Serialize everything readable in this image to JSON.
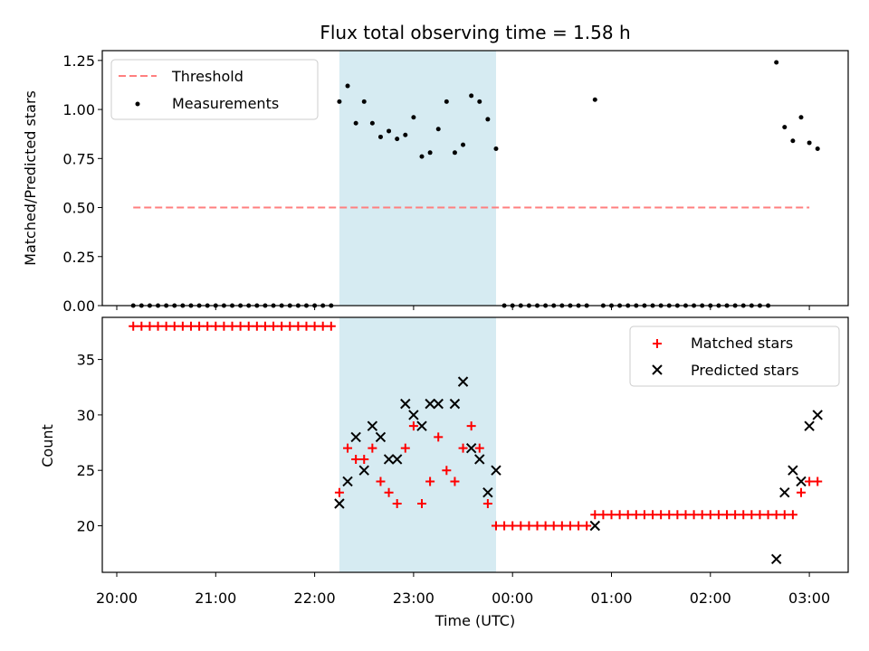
{
  "chart_data": {
    "type": "scatter",
    "title": "Flux total observing time = 1.58 h",
    "xlabel": "Time (UTC)",
    "x_ticks": [
      "20:00",
      "21:00",
      "22:00",
      "23:00",
      "00:00",
      "01:00",
      "02:00",
      "03:00"
    ],
    "shaded_region": {
      "start": "22:15",
      "end": "23:50",
      "color": "#add8e6"
    },
    "panels": [
      {
        "ylabel": "Matched/Predicted stars",
        "ylim": [
          0,
          1.3
        ],
        "y_ticks": [
          "0.00",
          "0.25",
          "0.50",
          "0.75",
          "1.00",
          "1.25"
        ],
        "legend": {
          "position": "top-left",
          "entries": [
            "Threshold",
            "Measurements"
          ]
        },
        "threshold": {
          "name": "Threshold",
          "value": 0.5,
          "x_start": "20:10",
          "x_end": "03:00",
          "color": "#ff7f7f"
        },
        "measurements": {
          "name": "Measurements",
          "color": "#000000",
          "points": [
            [
              "20:10",
              0
            ],
            [
              "20:15",
              0
            ],
            [
              "20:20",
              0
            ],
            [
              "20:25",
              0
            ],
            [
              "20:30",
              0
            ],
            [
              "20:35",
              0
            ],
            [
              "20:40",
              0
            ],
            [
              "20:45",
              0
            ],
            [
              "20:50",
              0
            ],
            [
              "20:55",
              0
            ],
            [
              "21:00",
              0
            ],
            [
              "21:05",
              0
            ],
            [
              "21:10",
              0
            ],
            [
              "21:15",
              0
            ],
            [
              "21:20",
              0
            ],
            [
              "21:25",
              0
            ],
            [
              "21:30",
              0
            ],
            [
              "21:35",
              0
            ],
            [
              "21:40",
              0
            ],
            [
              "21:45",
              0
            ],
            [
              "21:50",
              0
            ],
            [
              "21:55",
              0
            ],
            [
              "22:00",
              0
            ],
            [
              "22:05",
              0
            ],
            [
              "22:10",
              0
            ],
            [
              "22:15",
              1.04
            ],
            [
              "22:20",
              1.12
            ],
            [
              "22:25",
              0.93
            ],
            [
              "22:30",
              1.04
            ],
            [
              "22:35",
              0.93
            ],
            [
              "22:40",
              0.86
            ],
            [
              "22:45",
              0.89
            ],
            [
              "22:50",
              0.85
            ],
            [
              "22:55",
              0.87
            ],
            [
              "23:00",
              0.96
            ],
            [
              "23:05",
              0.76
            ],
            [
              "23:10",
              0.78
            ],
            [
              "23:15",
              0.9
            ],
            [
              "23:20",
              1.04
            ],
            [
              "23:25",
              0.78
            ],
            [
              "23:30",
              0.82
            ],
            [
              "23:35",
              1.07
            ],
            [
              "23:40",
              1.04
            ],
            [
              "23:45",
              0.95
            ],
            [
              "23:50",
              0.8
            ],
            [
              "23:55",
              0
            ],
            [
              "00:00",
              0
            ],
            [
              "00:05",
              0
            ],
            [
              "00:10",
              0
            ],
            [
              "00:15",
              0
            ],
            [
              "00:20",
              0
            ],
            [
              "00:25",
              0
            ],
            [
              "00:30",
              0
            ],
            [
              "00:35",
              0
            ],
            [
              "00:40",
              0
            ],
            [
              "00:45",
              0
            ],
            [
              "00:50",
              1.05
            ],
            [
              "00:55",
              0
            ],
            [
              "01:00",
              0
            ],
            [
              "01:05",
              0
            ],
            [
              "01:10",
              0
            ],
            [
              "01:15",
              0
            ],
            [
              "01:20",
              0
            ],
            [
              "01:25",
              0
            ],
            [
              "01:30",
              0
            ],
            [
              "01:35",
              0
            ],
            [
              "01:40",
              0
            ],
            [
              "01:45",
              0
            ],
            [
              "01:50",
              0
            ],
            [
              "01:55",
              0
            ],
            [
              "02:00",
              0
            ],
            [
              "02:05",
              0
            ],
            [
              "02:10",
              0
            ],
            [
              "02:15",
              0
            ],
            [
              "02:20",
              0
            ],
            [
              "02:25",
              0
            ],
            [
              "02:30",
              0
            ],
            [
              "02:35",
              0
            ],
            [
              "02:40",
              1.24
            ],
            [
              "02:45",
              0.91
            ],
            [
              "02:50",
              0.84
            ],
            [
              "02:55",
              0.96
            ],
            [
              "03:00",
              0.83
            ],
            [
              "03:05",
              0.8
            ]
          ]
        }
      },
      {
        "ylabel": "Count",
        "ylim": [
          15.8,
          38.8
        ],
        "y_ticks": [
          "20",
          "25",
          "30",
          "35"
        ],
        "legend": {
          "position": "top-right",
          "entries": [
            "Matched stars",
            "Predicted stars"
          ]
        },
        "series": [
          {
            "name": "Matched stars",
            "marker": "+",
            "color": "#ff0000",
            "points": [
              [
                "20:10",
                38
              ],
              [
                "20:15",
                38
              ],
              [
                "20:20",
                38
              ],
              [
                "20:25",
                38
              ],
              [
                "20:30",
                38
              ],
              [
                "20:35",
                38
              ],
              [
                "20:40",
                38
              ],
              [
                "20:45",
                38
              ],
              [
                "20:50",
                38
              ],
              [
                "20:55",
                38
              ],
              [
                "21:00",
                38
              ],
              [
                "21:05",
                38
              ],
              [
                "21:10",
                38
              ],
              [
                "21:15",
                38
              ],
              [
                "21:20",
                38
              ],
              [
                "21:25",
                38
              ],
              [
                "21:30",
                38
              ],
              [
                "21:35",
                38
              ],
              [
                "21:40",
                38
              ],
              [
                "21:45",
                38
              ],
              [
                "21:50",
                38
              ],
              [
                "21:55",
                38
              ],
              [
                "22:00",
                38
              ],
              [
                "22:05",
                38
              ],
              [
                "22:10",
                38
              ],
              [
                "22:15",
                23
              ],
              [
                "22:20",
                27
              ],
              [
                "22:25",
                26
              ],
              [
                "22:30",
                26
              ],
              [
                "22:35",
                27
              ],
              [
                "22:40",
                24
              ],
              [
                "22:45",
                23
              ],
              [
                "22:50",
                22
              ],
              [
                "22:55",
                27
              ],
              [
                "23:00",
                29
              ],
              [
                "23:05",
                22
              ],
              [
                "23:10",
                24
              ],
              [
                "23:15",
                28
              ],
              [
                "23:20",
                25
              ],
              [
                "23:25",
                24
              ],
              [
                "23:30",
                27
              ],
              [
                "23:35",
                29
              ],
              [
                "23:40",
                27
              ],
              [
                "23:45",
                22
              ],
              [
                "23:50",
                20
              ],
              [
                "23:55",
                20
              ],
              [
                "00:00",
                20
              ],
              [
                "00:05",
                20
              ],
              [
                "00:10",
                20
              ],
              [
                "00:15",
                20
              ],
              [
                "00:20",
                20
              ],
              [
                "00:25",
                20
              ],
              [
                "00:30",
                20
              ],
              [
                "00:35",
                20
              ],
              [
                "00:40",
                20
              ],
              [
                "00:45",
                20
              ],
              [
                "00:50",
                21
              ],
              [
                "00:55",
                21
              ],
              [
                "01:00",
                21
              ],
              [
                "01:05",
                21
              ],
              [
                "01:10",
                21
              ],
              [
                "01:15",
                21
              ],
              [
                "01:20",
                21
              ],
              [
                "01:25",
                21
              ],
              [
                "01:30",
                21
              ],
              [
                "01:35",
                21
              ],
              [
                "01:40",
                21
              ],
              [
                "01:45",
                21
              ],
              [
                "01:50",
                21
              ],
              [
                "01:55",
                21
              ],
              [
                "02:00",
                21
              ],
              [
                "02:05",
                21
              ],
              [
                "02:10",
                21
              ],
              [
                "02:15",
                21
              ],
              [
                "02:20",
                21
              ],
              [
                "02:25",
                21
              ],
              [
                "02:30",
                21
              ],
              [
                "02:35",
                21
              ],
              [
                "02:40",
                21
              ],
              [
                "02:45",
                21
              ],
              [
                "02:50",
                21
              ],
              [
                "02:55",
                23
              ],
              [
                "03:00",
                24
              ],
              [
                "03:05",
                24
              ]
            ]
          },
          {
            "name": "Predicted stars",
            "marker": "x",
            "color": "#000000",
            "points": [
              [
                "22:15",
                22
              ],
              [
                "22:20",
                24
              ],
              [
                "22:25",
                28
              ],
              [
                "22:30",
                25
              ],
              [
                "22:35",
                29
              ],
              [
                "22:40",
                28
              ],
              [
                "22:45",
                26
              ],
              [
                "22:50",
                26
              ],
              [
                "22:55",
                31
              ],
              [
                "23:00",
                30
              ],
              [
                "23:05",
                29
              ],
              [
                "23:10",
                31
              ],
              [
                "23:15",
                31
              ],
              [
                "23:25",
                31
              ],
              [
                "23:30",
                33
              ],
              [
                "23:35",
                27
              ],
              [
                "23:40",
                26
              ],
              [
                "23:45",
                23
              ],
              [
                "23:50",
                25
              ],
              [
                "00:50",
                20
              ],
              [
                "02:40",
                17
              ],
              [
                "02:45",
                23
              ],
              [
                "02:50",
                25
              ],
              [
                "02:55",
                24
              ],
              [
                "03:00",
                29
              ],
              [
                "03:05",
                30
              ]
            ]
          }
        ]
      }
    ]
  }
}
